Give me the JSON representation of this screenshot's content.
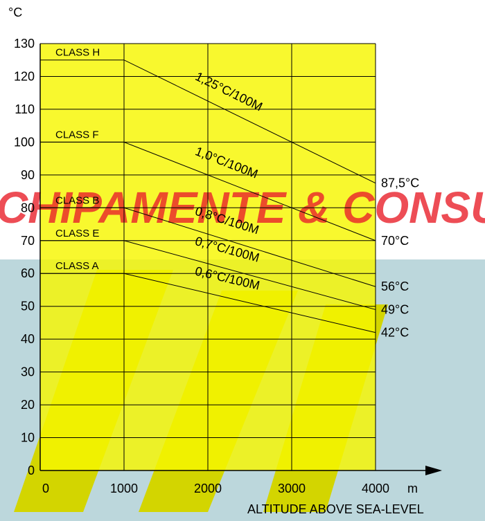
{
  "watermark": "CHIPAMENTE & CONSU",
  "colors": {
    "background": "#ffffff",
    "plot": "#f6f600",
    "grid": "#000000",
    "watermark_red": "#e8202a",
    "watermark_teal": "#bcd7dc",
    "watermark_olive": "#d3d500"
  },
  "chart_data": {
    "type": "line",
    "xlabel": "ALTITUDE ABOVE SEA-LEVEL",
    "x_unit": "m",
    "y_unit": "°C",
    "xlim": [
      0,
      4000
    ],
    "ylim": [
      0,
      130
    ],
    "x_ticks": [
      0,
      1000,
      2000,
      3000,
      4000
    ],
    "y_ticks": [
      0,
      10,
      20,
      30,
      40,
      50,
      60,
      70,
      80,
      90,
      100,
      110,
      120,
      130
    ],
    "grid": true,
    "series": [
      {
        "name": "CLASS H",
        "x": [
          0,
          1000,
          4000
        ],
        "y": [
          125,
          125,
          87.5
        ],
        "slope_label": "1,25°C/100M",
        "end_label": "87,5°C"
      },
      {
        "name": "CLASS F",
        "x": [
          0,
          1000,
          4000
        ],
        "y": [
          100,
          100,
          70
        ],
        "slope_label": "1,0°C/100M",
        "end_label": "70°C"
      },
      {
        "name": "CLASS B",
        "x": [
          0,
          1000,
          4000
        ],
        "y": [
          80,
          80,
          56
        ],
        "slope_label": "0,8°C/100M",
        "end_label": "56°C"
      },
      {
        "name": "CLASS E",
        "x": [
          0,
          1000,
          4000
        ],
        "y": [
          70,
          70,
          49
        ],
        "slope_label": "0,7°C/100M",
        "end_label": "49°C"
      },
      {
        "name": "CLASS A",
        "x": [
          0,
          1000,
          4000
        ],
        "y": [
          60,
          60,
          42
        ],
        "slope_label": "0,6°C/100M",
        "end_label": "42°C"
      }
    ]
  }
}
